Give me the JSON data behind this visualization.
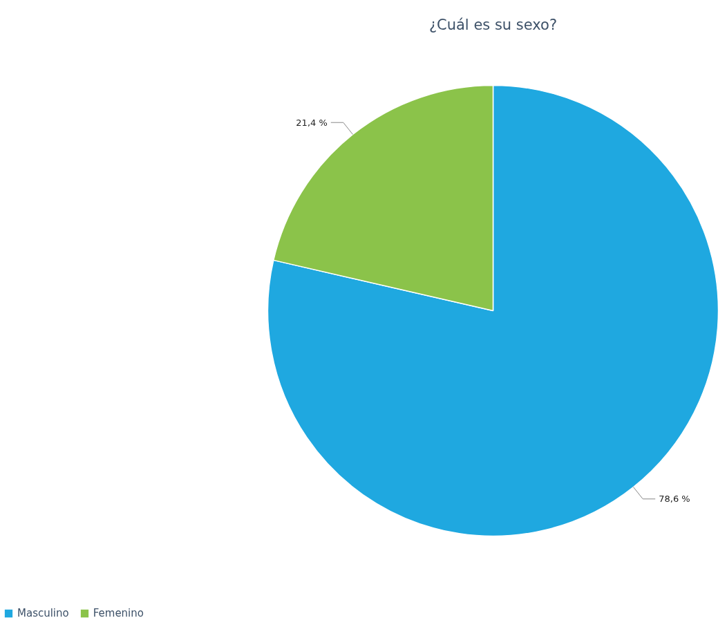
{
  "chart_data": {
    "type": "pie",
    "title": "¿Cuál es su sexo?",
    "categories": [
      "Masculino",
      "Femenino"
    ],
    "values": [
      78.6,
      21.4
    ],
    "colors": [
      "#1fa8e0",
      "#8bc34a"
    ],
    "value_labels": [
      "78,6 %",
      "21,4 %"
    ],
    "legend": "bottom left"
  }
}
